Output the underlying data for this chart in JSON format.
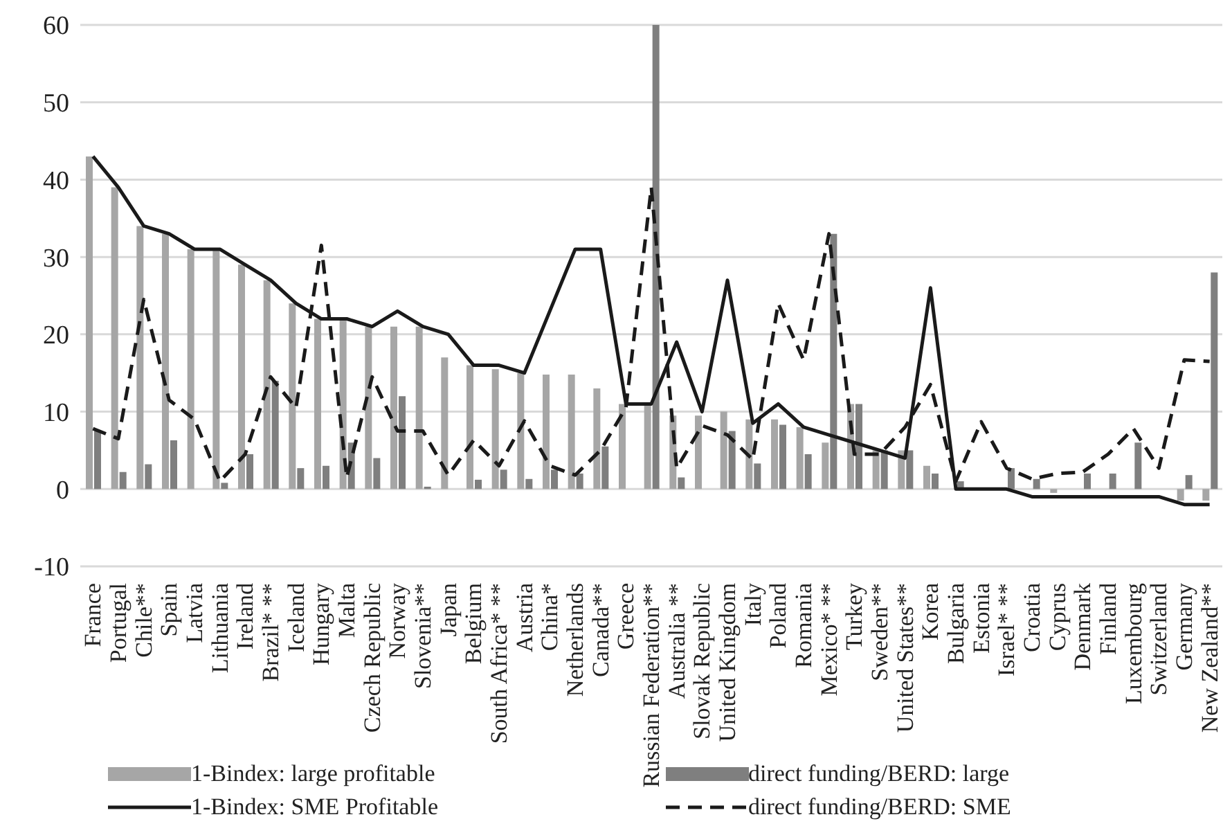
{
  "chart_data": {
    "type": "bar",
    "categories": [
      "France",
      "Portugal",
      "Chile**",
      "Spain",
      "Latvia",
      "Lithuania",
      "Ireland",
      "Brazil* **",
      "Iceland",
      "Hungary",
      "Malta",
      "Czech Republic",
      "Norway",
      "Slovenia**",
      "Japan",
      "Belgium",
      "South Africa* **",
      "Austria",
      "China*",
      "Netherlands",
      "Canada**",
      "Greece",
      "Russian Federation**",
      "Australia **",
      "Slovak Republic",
      "United Kingdom",
      "Italy",
      "Poland",
      "Romania",
      "Mexico* **",
      "Turkey",
      "Sweden**",
      "United States**",
      "Korea",
      "Bulgaria",
      "Estonia",
      "Israel* **",
      "Croatia",
      "Cyprus",
      "Denmark",
      "Finland",
      "Luxembourg",
      "Switzerland",
      "Germany",
      "New Zealand**"
    ],
    "series": [
      {
        "name": "1-Bindex: large profitable",
        "color": "#a6a6a6",
        "values": [
          43,
          39,
          34,
          33,
          31,
          31,
          29,
          27,
          24,
          22,
          22,
          21,
          21,
          21,
          17,
          16,
          15.5,
          15,
          14.8,
          14.8,
          13,
          11,
          11,
          9.5,
          9.5,
          10,
          9,
          9,
          8,
          6,
          11,
          5,
          5,
          3,
          0,
          0,
          0,
          0,
          -0.5,
          0,
          0,
          0,
          0,
          -1.5,
          -1.5
        ]
      },
      {
        "name": "direct funding/BERD: large",
        "color": "#7f7f7f",
        "values": [
          7.5,
          2.2,
          3.2,
          6.3,
          0,
          0.8,
          4.5,
          14,
          2.7,
          3,
          6,
          4,
          12,
          0.3,
          0,
          1.2,
          2.5,
          1.3,
          2.5,
          2,
          5.5,
          0,
          60,
          1.5,
          0,
          7.5,
          3.3,
          8.3,
          4.5,
          33,
          11,
          5,
          5,
          2,
          1,
          0,
          2.7,
          1.3,
          0,
          2,
          2,
          6,
          0,
          1.8,
          28
        ]
      },
      {
        "name": "1-Bindex: SME Profitable",
        "type": "line",
        "color": "#1a1a1a",
        "line_style": "solid",
        "values": [
          43,
          39,
          34,
          33,
          31,
          31,
          29,
          27,
          24,
          22,
          22,
          21,
          23,
          21,
          20,
          16,
          16,
          15,
          23,
          31,
          31,
          11,
          11,
          19,
          10,
          27,
          8.5,
          11,
          8,
          7,
          6,
          5,
          4,
          26,
          0,
          0,
          0,
          -1,
          -1,
          -1,
          -1,
          -1,
          -1,
          -2,
          -2
        ]
      },
      {
        "name": "direct funding/BERD: SME",
        "type": "line",
        "color": "#1a1a1a",
        "line_style": "dashed",
        "values": [
          7.8,
          6.5,
          24.5,
          11.5,
          9,
          1,
          4.5,
          14.5,
          10.5,
          31.5,
          1.5,
          14.5,
          7.5,
          7.5,
          1.8,
          6.3,
          3,
          8.8,
          3,
          1.8,
          5,
          10.5,
          39,
          2.7,
          8.2,
          7,
          3.8,
          24,
          16.7,
          33,
          4.5,
          4.5,
          8,
          13.5,
          1,
          8.7,
          2.7,
          1.3,
          2,
          2.2,
          4.5,
          7.8,
          2.7,
          16.7,
          16.5
        ]
      }
    ],
    "ylim": [
      -10,
      60
    ],
    "yticks": [
      -10,
      0,
      10,
      20,
      30,
      40,
      50,
      60
    ],
    "grid": "y",
    "legend": "bottom",
    "marker": "none"
  }
}
